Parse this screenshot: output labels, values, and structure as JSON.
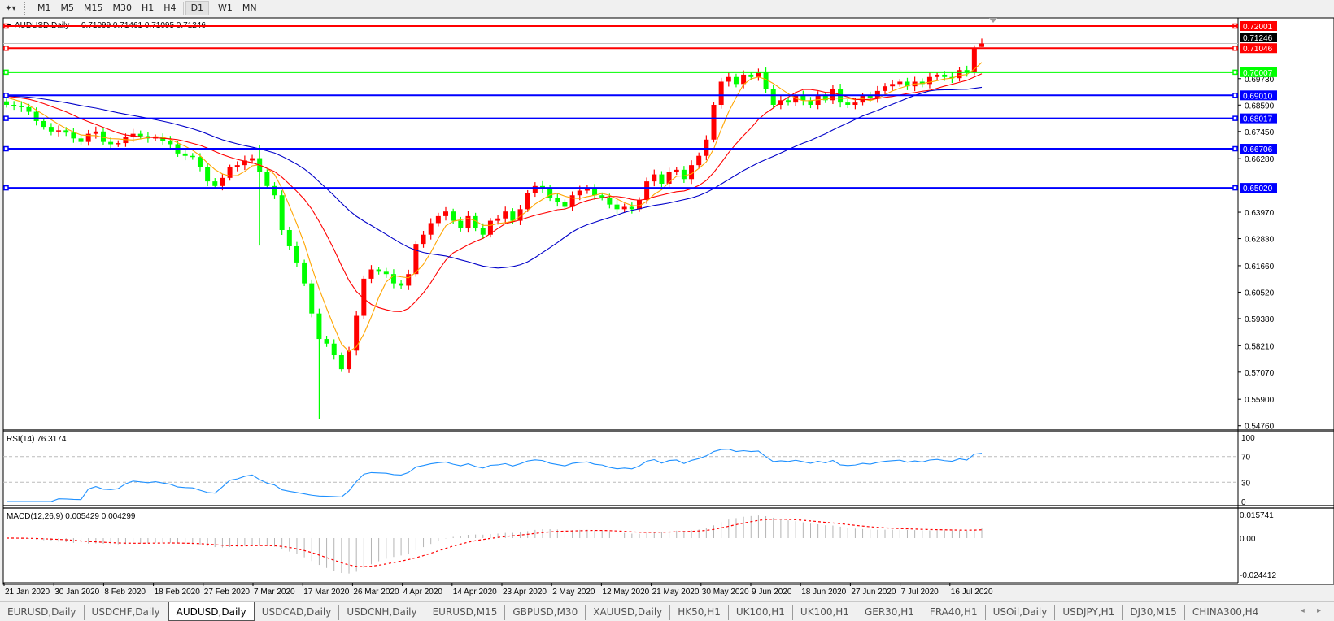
{
  "toolbar": {
    "timeframes": [
      "M1",
      "M5",
      "M15",
      "M30",
      "H1",
      "H4",
      "D1",
      "W1",
      "MN"
    ],
    "active_timeframe": "D1",
    "tool_icon": "line-tool-icon"
  },
  "chart": {
    "header_symbol": "AUDUSD,Daily",
    "header_ohlc": "0.71099 0.71461 0.71095 0.71246",
    "current_price": "0.71246",
    "levels": [
      {
        "price": "0.72001",
        "color": "#ff0000"
      },
      {
        "price": "0.71046",
        "color": "#ff0000"
      },
      {
        "price": "0.70007",
        "color": "#00ff00"
      },
      {
        "price": "0.69010",
        "color": "#0000ff"
      },
      {
        "price": "0.68017",
        "color": "#0000ff"
      },
      {
        "price": "0.66706",
        "color": "#0000ff"
      },
      {
        "price": "0.65020",
        "color": "#0000ff"
      }
    ],
    "price_ticks": [
      "0.69730",
      "0.68590",
      "0.67450",
      "0.66280",
      "0.63970",
      "0.62830",
      "0.61660",
      "0.60520",
      "0.59380",
      "0.58210",
      "0.57070",
      "0.55900",
      "0.54760"
    ],
    "date_labels": [
      "21 Jan 2020",
      "30 Jan 2020",
      "8 Feb 2020",
      "18 Feb 2020",
      "27 Feb 2020",
      "7 Mar 2020",
      "17 Mar 2020",
      "26 Mar 2020",
      "4 Apr 2020",
      "14 Apr 2020",
      "23 Apr 2020",
      "2 May 2020",
      "12 May 2020",
      "21 May 2020",
      "30 May 2020",
      "9 Jun 2020",
      "18 Jun 2020",
      "27 Jun 2020",
      "7 Jul 2020",
      "16 Jul 2020"
    ],
    "rsi": {
      "label": "RSI(14) 76.3174",
      "ticks": [
        "100",
        "70",
        "30",
        "0"
      ],
      "color": "#1e90ff"
    },
    "macd": {
      "label": "MACD(12,26,9) 0.005429 0.004299",
      "ticks": [
        "0.015741",
        "0.00",
        "-0.024412"
      ],
      "histogram_color": "#b4b4b4",
      "signal_color": "#ff0000"
    }
  },
  "chart_data": {
    "type": "candlestick",
    "symbol": "AUDUSD",
    "timeframe": "Daily",
    "ylim": [
      0.5476,
      0.7235
    ],
    "up_color": "#ff0000",
    "down_color": "#00ff00",
    "ma_colors": [
      "#ffa500",
      "#ff0000",
      "#0000c8"
    ],
    "close": [
      0.686,
      0.6855,
      0.685,
      0.683,
      0.679,
      0.6765,
      0.6745,
      0.675,
      0.674,
      0.6715,
      0.67,
      0.6735,
      0.6745,
      0.67,
      0.669,
      0.6695,
      0.672,
      0.6735,
      0.6725,
      0.6715,
      0.672,
      0.6705,
      0.669,
      0.665,
      0.664,
      0.6635,
      0.659,
      0.653,
      0.651,
      0.6545,
      0.659,
      0.66,
      0.662,
      0.663,
      0.657,
      0.651,
      0.647,
      0.632,
      0.625,
      0.618,
      0.609,
      0.596,
      0.585,
      0.583,
      0.578,
      0.572,
      0.58,
      0.595,
      0.611,
      0.615,
      0.614,
      0.613,
      0.609,
      0.608,
      0.613,
      0.626,
      0.63,
      0.635,
      0.638,
      0.64,
      0.636,
      0.633,
      0.638,
      0.633,
      0.63,
      0.636,
      0.637,
      0.64,
      0.636,
      0.641,
      0.648,
      0.651,
      0.65,
      0.646,
      0.644,
      0.642,
      0.647,
      0.649,
      0.65,
      0.647,
      0.646,
      0.643,
      0.641,
      0.642,
      0.641,
      0.645,
      0.653,
      0.656,
      0.652,
      0.657,
      0.658,
      0.654,
      0.66,
      0.664,
      0.671,
      0.686,
      0.696,
      0.698,
      0.695,
      0.699,
      0.698,
      0.7,
      0.693,
      0.686,
      0.688,
      0.687,
      0.69,
      0.688,
      0.686,
      0.69,
      0.688,
      0.693,
      0.687,
      0.686,
      0.687,
      0.69,
      0.689,
      0.692,
      0.694,
      0.695,
      0.696,
      0.694,
      0.696,
      0.695,
      0.698,
      0.699,
      0.698,
      0.6975,
      0.701,
      0.7,
      0.7105,
      0.71246
    ],
    "last_bar": {
      "open": 0.71099,
      "high": 0.71461,
      "low": 0.71095,
      "close": 0.71246
    },
    "notable_lows": [
      {
        "bar": "2020-03-09",
        "low": 0.6253
      },
      {
        "bar": "2020-03-19",
        "low": 0.5506
      }
    ],
    "rsi_levels": [
      70,
      30
    ],
    "rsi_range": [
      0,
      100
    ],
    "macd_range": [
      -0.024412,
      0.015741
    ]
  },
  "tabs": [
    "EURUSD,Daily",
    "USDCHF,Daily",
    "AUDUSD,Daily",
    "USDCAD,Daily",
    "USDCNH,Daily",
    "EURUSD,M15",
    "GBPUSD,M30",
    "XAUUSD,Daily",
    "HK50,H1",
    "UK100,H1",
    "UK100,H1",
    "GER30,H1",
    "FRA40,H1",
    "USOil,Daily",
    "USDJPY,H1",
    "DJ30,M15",
    "CHINA300,H4"
  ],
  "active_tab": "AUDUSD,Daily",
  "tab_scroll": "◂ ▸"
}
